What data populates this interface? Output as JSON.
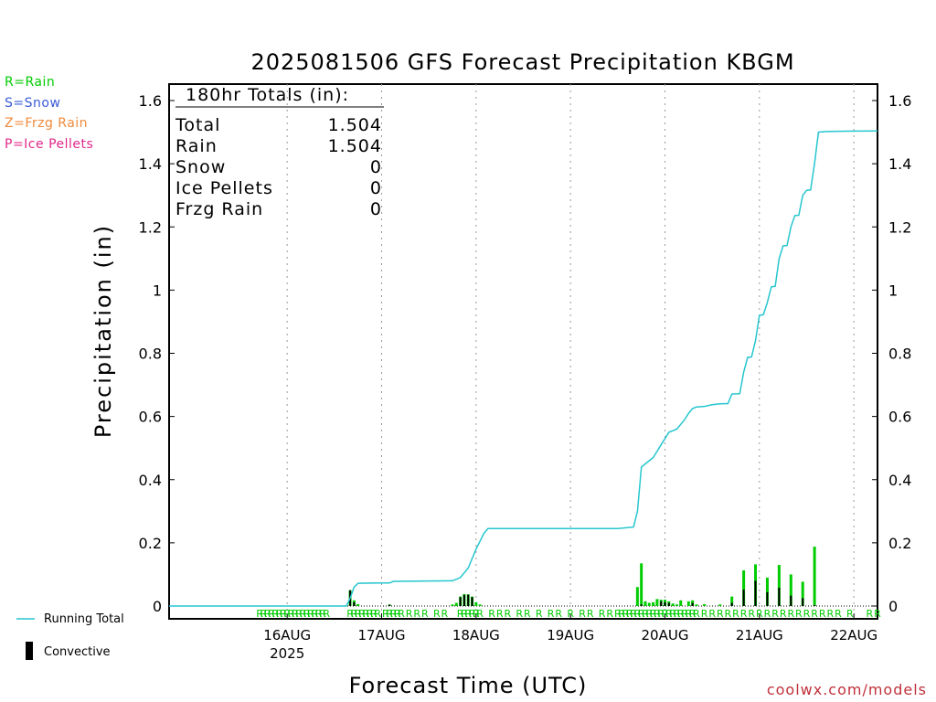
{
  "chart_data": {
    "type": "bar",
    "title": "2025081506 GFS Forecast Precipitation KBGM",
    "xlabel": "Forecast Time (UTC)",
    "ylabel": "Precipitation (in)",
    "ylim": [
      0,
      1.65
    ],
    "yticks": [
      "0",
      "0.2",
      "0.4",
      "0.6",
      "0.8",
      "1",
      "1.2",
      "1.4",
      "1.6"
    ],
    "xticks": [
      "16AUG",
      "17AUG",
      "18AUG",
      "19AUG",
      "20AUG",
      "21AUG",
      "22AUG"
    ],
    "xtick_year": "2025",
    "x_range_hours": [
      -30,
      150
    ],
    "totals_box": {
      "header": "180hr Totals (in):",
      "rows": [
        {
          "label": "Total",
          "value": "1.504"
        },
        {
          "label": "Rain",
          "value": "1.504"
        },
        {
          "label": "Snow",
          "value": "0"
        },
        {
          "label": "Ice Pellets",
          "value": "0"
        },
        {
          "label": "Frzg Rain",
          "value": "0"
        }
      ]
    },
    "series": [
      {
        "name": "Running Total",
        "kind": "line",
        "color": "#26c6cf",
        "points": [
          [
            -30,
            0
          ],
          [
            15,
            0
          ],
          [
            16,
            0.025
          ],
          [
            17,
            0.06
          ],
          [
            18,
            0.072
          ],
          [
            24,
            0.073
          ],
          [
            26,
            0.073
          ],
          [
            27,
            0.078
          ],
          [
            42,
            0.08
          ],
          [
            44,
            0.09
          ],
          [
            46,
            0.12
          ],
          [
            48,
            0.18
          ],
          [
            50,
            0.23
          ],
          [
            51,
            0.245
          ],
          [
            60,
            0.245
          ],
          [
            84,
            0.245
          ],
          [
            88,
            0.25
          ],
          [
            89,
            0.3
          ],
          [
            90,
            0.44
          ],
          [
            91,
            0.45
          ],
          [
            92,
            0.46
          ],
          [
            93,
            0.47
          ],
          [
            94,
            0.49
          ],
          [
            95,
            0.51
          ],
          [
            96,
            0.53
          ],
          [
            97,
            0.55
          ],
          [
            98,
            0.555
          ],
          [
            99,
            0.56
          ],
          [
            100,
            0.575
          ],
          [
            101,
            0.59
          ],
          [
            102,
            0.61
          ],
          [
            103,
            0.625
          ],
          [
            104,
            0.63
          ],
          [
            106,
            0.632
          ],
          [
            108,
            0.637
          ],
          [
            110,
            0.64
          ],
          [
            112,
            0.641
          ],
          [
            113,
            0.671
          ],
          [
            115,
            0.672
          ],
          [
            116,
            0.74
          ],
          [
            117,
            0.787
          ],
          [
            118,
            0.788
          ],
          [
            119,
            0.84
          ],
          [
            120,
            0.92
          ],
          [
            121,
            0.922
          ],
          [
            122,
            0.96
          ],
          [
            123,
            1.01
          ],
          [
            124,
            1.012
          ],
          [
            125,
            1.1
          ],
          [
            126,
            1.14
          ],
          [
            127,
            1.141
          ],
          [
            128,
            1.2
          ],
          [
            129,
            1.236
          ],
          [
            130,
            1.237
          ],
          [
            131,
            1.3
          ],
          [
            132,
            1.316
          ],
          [
            133,
            1.317
          ],
          [
            134,
            1.4
          ],
          [
            135,
            1.5
          ],
          [
            137,
            1.502
          ],
          [
            142,
            1.503
          ],
          [
            150,
            1.504
          ]
        ]
      },
      {
        "name": "Precipitation",
        "kind": "bar",
        "color": "#00cc00",
        "points": [
          [
            16,
            0.05
          ],
          [
            17,
            0.018
          ],
          [
            18,
            0.006
          ],
          [
            26,
            0.005
          ],
          [
            42,
            0.005
          ],
          [
            43,
            0.01
          ],
          [
            44,
            0.03
          ],
          [
            45,
            0.038
          ],
          [
            46,
            0.037
          ],
          [
            47,
            0.03
          ],
          [
            48,
            0.012
          ],
          [
            49,
            0.005
          ],
          [
            89,
            0.06
          ],
          [
            90,
            0.135
          ],
          [
            91,
            0.015
          ],
          [
            92,
            0.01
          ],
          [
            93,
            0.012
          ],
          [
            94,
            0.022
          ],
          [
            95,
            0.02
          ],
          [
            96,
            0.02
          ],
          [
            97,
            0.015
          ],
          [
            98,
            0.008
          ],
          [
            99,
            0.005
          ],
          [
            100,
            0.018
          ],
          [
            102,
            0.015
          ],
          [
            103,
            0.018
          ],
          [
            104,
            0.005
          ],
          [
            106,
            0.006
          ],
          [
            110,
            0.005
          ],
          [
            113,
            0.03
          ],
          [
            116,
            0.113
          ],
          [
            119,
            0.132
          ],
          [
            122,
            0.09
          ],
          [
            125,
            0.13
          ],
          [
            128,
            0.1
          ],
          [
            131,
            0.077
          ],
          [
            134,
            0.188
          ]
        ]
      },
      {
        "name": "Convective",
        "kind": "bar",
        "color": "#000000",
        "points": [
          [
            16,
            0.05
          ],
          [
            17,
            0.012
          ],
          [
            26,
            0.004
          ],
          [
            44,
            0.028
          ],
          [
            45,
            0.035
          ],
          [
            46,
            0.036
          ],
          [
            47,
            0.028
          ],
          [
            90,
            0.005
          ],
          [
            95,
            0.015
          ],
          [
            96,
            0.012
          ],
          [
            97,
            0.01
          ],
          [
            103,
            0.01
          ],
          [
            113,
            0.01
          ],
          [
            116,
            0.052
          ],
          [
            119,
            0.08
          ],
          [
            122,
            0.044
          ],
          [
            125,
            0.058
          ],
          [
            128,
            0.033
          ],
          [
            131,
            0.025
          ],
          [
            134,
            0.003
          ]
        ]
      }
    ],
    "ptype_markers": {
      "letter": "R",
      "hours": [
        -7,
        -6,
        -5,
        -4,
        -3,
        -2,
        -1,
        0,
        1,
        2,
        3,
        4,
        5,
        6,
        7,
        8,
        9,
        10,
        16,
        17,
        18,
        19,
        20,
        21,
        22,
        23,
        25,
        26,
        27,
        28,
        29,
        31,
        33,
        35,
        38,
        40,
        44,
        45,
        46,
        47,
        48,
        49,
        52,
        54,
        56,
        59,
        61,
        64,
        67,
        69,
        72,
        75,
        77,
        80,
        82,
        84,
        85,
        86,
        87,
        88,
        89,
        90,
        91,
        92,
        93,
        94,
        95,
        96,
        97,
        98,
        99,
        100,
        101,
        102,
        103,
        104,
        106,
        108,
        110,
        112,
        114,
        116,
        118,
        120,
        122,
        124,
        126,
        128,
        130,
        132,
        134,
        136,
        138,
        140,
        143,
        148,
        150,
        152
      ]
    },
    "ptype_legend": [
      {
        "label": "R=Rain",
        "color": "#00cc00"
      },
      {
        "label": "S=Snow",
        "color": "#3a5bd9"
      },
      {
        "label": "Z=Frzg Rain",
        "color": "#f08a3c"
      },
      {
        "label": "P=Ice Pellets",
        "color": "#e0288a"
      }
    ],
    "legend": {
      "running_total": "Running Total",
      "convective": "Convective"
    },
    "credit": "coolwx.com/models"
  }
}
